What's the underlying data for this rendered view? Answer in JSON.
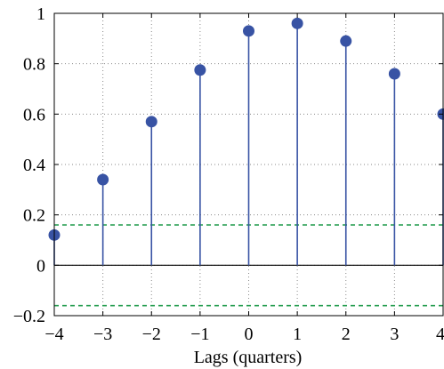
{
  "chart_data": {
    "type": "stem",
    "title": "",
    "xlabel": "Lags (quarters)",
    "ylabel": "",
    "xlim": [
      -4,
      4
    ],
    "ylim": [
      -0.2,
      1
    ],
    "x_ticks": [
      -4,
      -3,
      -2,
      -1,
      0,
      1,
      2,
      3,
      4
    ],
    "x_tick_labels": [
      "−4",
      "−3",
      "−2",
      "−1",
      "0",
      "1",
      "2",
      "3",
      "4"
    ],
    "y_ticks": [
      -0.2,
      0,
      0.2,
      0.4,
      0.6,
      0.8,
      1
    ],
    "y_tick_labels": [
      "−0.2",
      "0",
      "0.2",
      "0.4",
      "0.6",
      "0.8",
      "1"
    ],
    "grid": "dotted",
    "series": [
      {
        "x": [
          -4,
          -3,
          -2,
          -1,
          0,
          1,
          2,
          3,
          4
        ],
        "values": [
          0.12,
          0.34,
          0.57,
          0.775,
          0.93,
          0.96,
          0.89,
          0.76,
          0.6
        ]
      }
    ],
    "reference_lines": [
      {
        "y": 0,
        "style": "solid"
      },
      {
        "y": 0.16,
        "style": "dashed"
      },
      {
        "y": -0.16,
        "style": "dashed"
      }
    ],
    "colors": {
      "stem": "#3853a4",
      "marker": "#3853a4",
      "bounds": "#1f9a4a",
      "grid": "#8a8a8a"
    }
  }
}
